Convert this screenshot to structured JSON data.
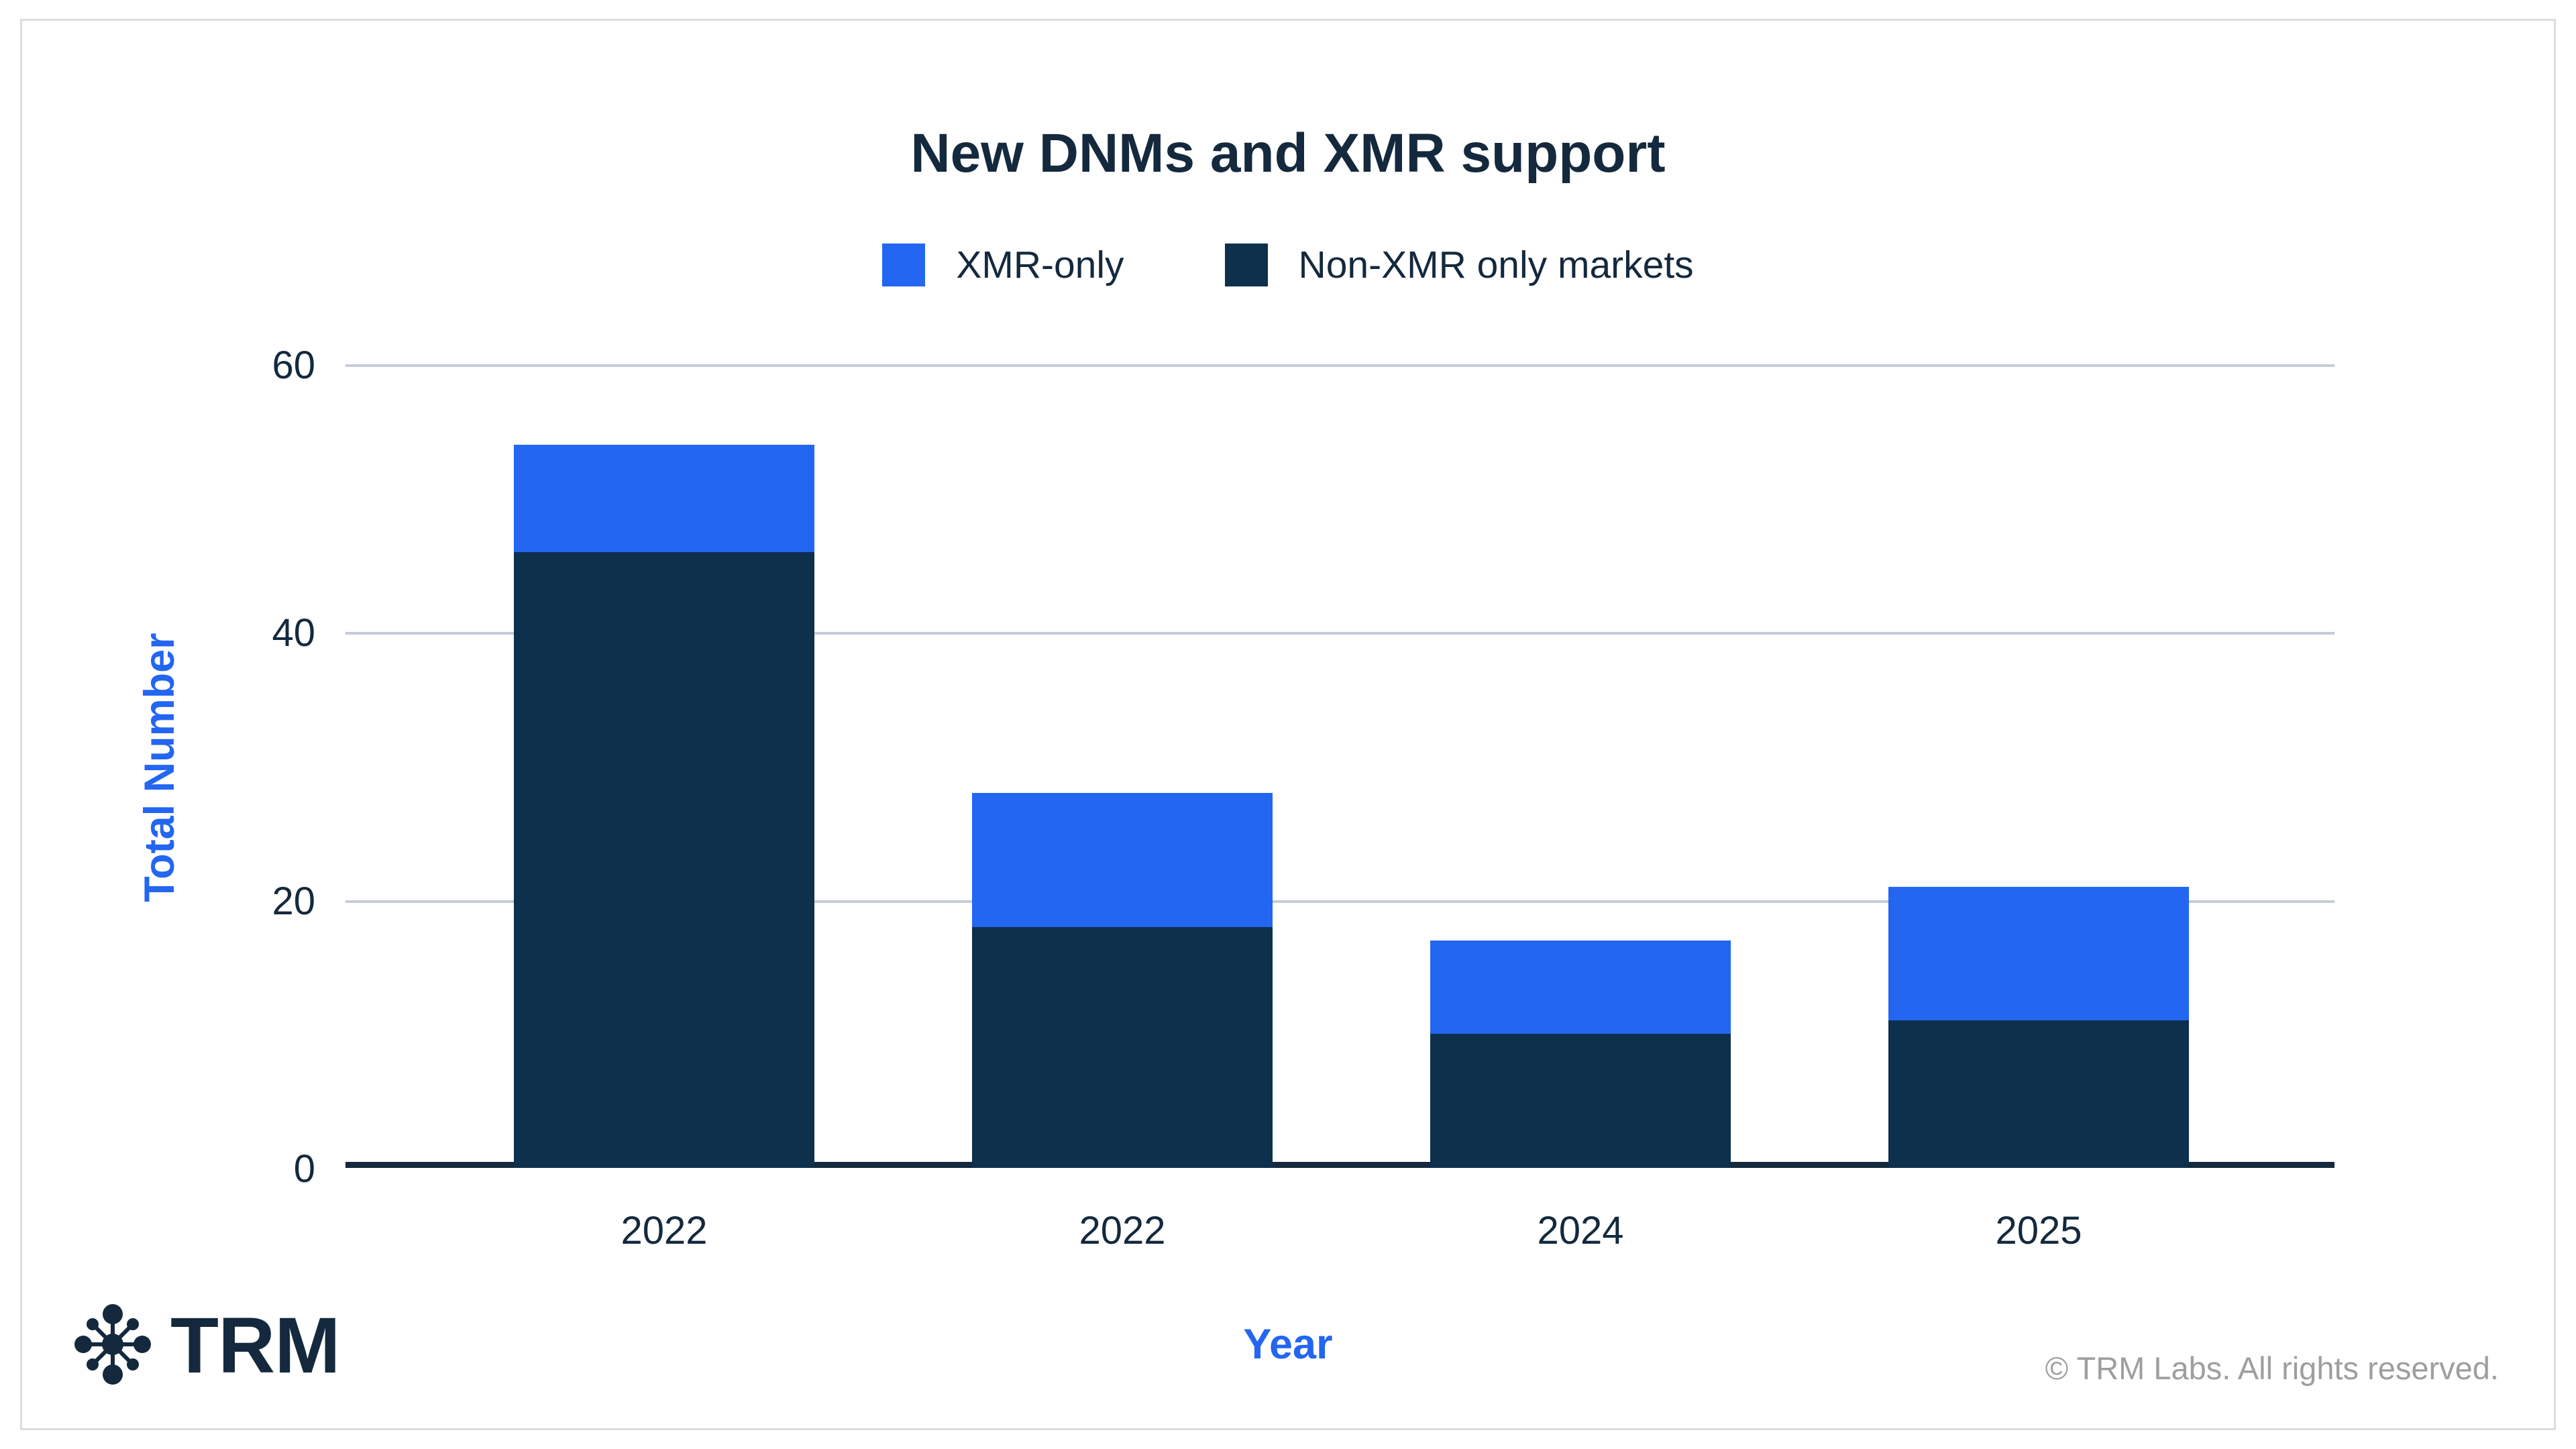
{
  "page": {
    "background": "#ffffff",
    "card_border_color": "#dcdcdc"
  },
  "header": {
    "title": "New DNMs and XMR support"
  },
  "legend": {
    "items": [
      {
        "label": "XMR-only",
        "color": "#2266f2"
      },
      {
        "label": "Non-XMR only markets",
        "color": "#0d304d"
      }
    ]
  },
  "chart_data": {
    "type": "bar",
    "stacked": true,
    "title": "New DNMs and XMR support",
    "categories": [
      "2022",
      "2022",
      "2024",
      "2025"
    ],
    "series": [
      {
        "name": "Non-XMR only markets",
        "color": "#0d304d",
        "values": [
          46,
          18,
          10,
          11
        ]
      },
      {
        "name": "XMR-only",
        "color": "#2266f2",
        "values": [
          8,
          10,
          7,
          10
        ]
      }
    ],
    "totals": [
      54,
      28,
      17,
      21
    ],
    "xlabel": "Year",
    "ylabel": "Total Number",
    "ylim": [
      0,
      60
    ],
    "yticks": [
      0,
      20,
      40,
      60
    ],
    "grid": "horizontal",
    "legend_position": "top",
    "gridline_color": "#c5cbd6",
    "axis_line_color": "#14293d",
    "tick_label_color": "#14293d"
  },
  "footer": {
    "logo_icon": "trm-molecule-icon",
    "logo_text": "TRM",
    "copyright": "© TRM Labs. All rights reserved."
  }
}
